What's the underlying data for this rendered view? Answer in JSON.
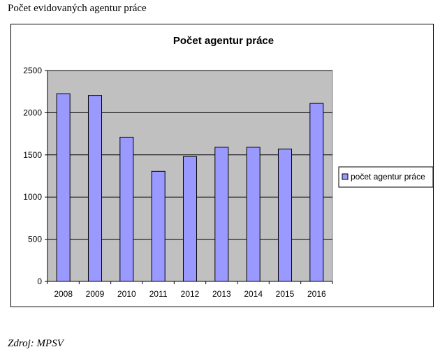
{
  "page": {
    "heading": "Počet evidovaných agentur práce",
    "source": "Zdroj: MPSV"
  },
  "chart_data": {
    "type": "bar",
    "title": "Počet agentur práce",
    "categories": [
      "2008",
      "2009",
      "2010",
      "2011",
      "2012",
      "2013",
      "2014",
      "2015",
      "2016"
    ],
    "series": [
      {
        "name": "počet agentur práce",
        "values": [
          2225,
          2205,
          1710,
          1305,
          1480,
          1590,
          1590,
          1570,
          2110
        ]
      }
    ],
    "ylim": [
      0,
      2500
    ],
    "yticks": [
      0,
      500,
      1000,
      1500,
      2000,
      2500
    ],
    "grid": true,
    "legend": "right",
    "xlabel": "",
    "ylabel": "",
    "colors": {
      "bar_fill": "#9999ff",
      "plot_background": "#c0c0c0",
      "gridline": "#000000"
    }
  }
}
